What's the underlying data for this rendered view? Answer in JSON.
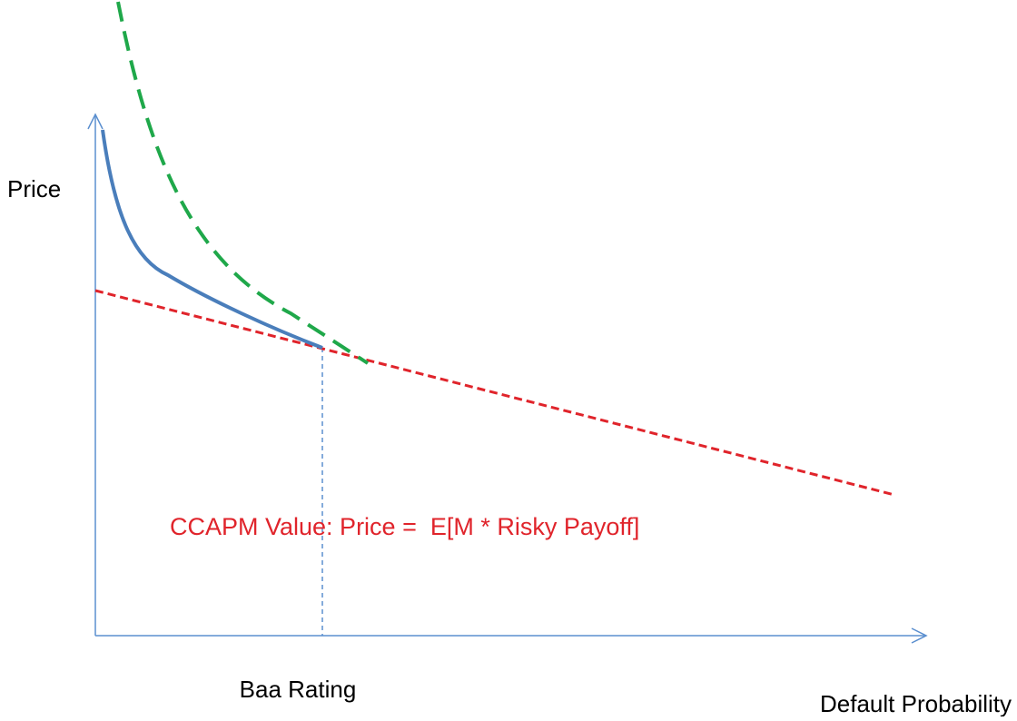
{
  "labels": {
    "y_axis": "Price",
    "x_axis": "Default Probability",
    "marker": "Baa Rating",
    "annotation": "CCAPM Value: Price =  E[M * Risky Payoff]"
  }
}
